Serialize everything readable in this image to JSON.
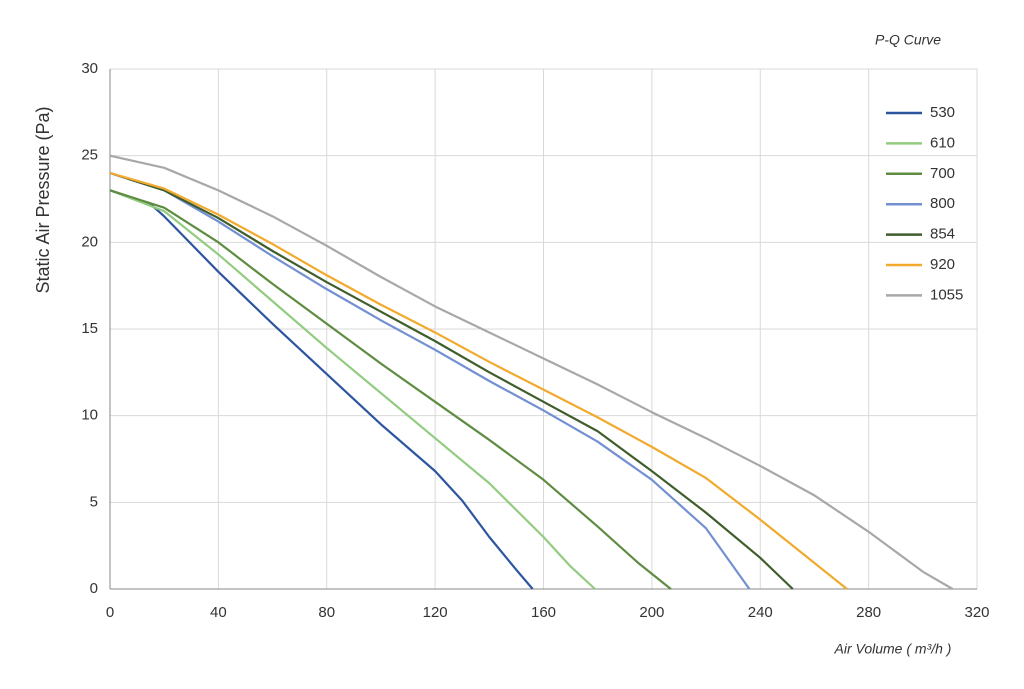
{
  "chart_data": {
    "type": "line",
    "title": "P-Q Curve",
    "x_label": "Air Volume ( m³/h )",
    "y_label": "Static Air Pressure  (Pa)",
    "xlim": [
      0,
      320
    ],
    "xticks": [
      0,
      40,
      80,
      120,
      160,
      200,
      240,
      280,
      320
    ],
    "ylim": [
      0,
      30
    ],
    "yticks": [
      0,
      5,
      10,
      15,
      20,
      25,
      30
    ],
    "grid": true,
    "legend": "upper right",
    "series": [
      {
        "name": "530",
        "color": "#2e55a0",
        "x": [
          0,
          15,
          20,
          40,
          60,
          80,
          100,
          120,
          130,
          140,
          150,
          156
        ],
        "values": [
          23,
          22.2,
          21.5,
          18.3,
          15.3,
          12.4,
          9.5,
          6.8,
          5.1,
          3,
          1.1,
          0
        ]
      },
      {
        "name": "610",
        "color": "#93cc80",
        "x": [
          0,
          20,
          40,
          60,
          80,
          100,
          120,
          140,
          160,
          170,
          179
        ],
        "values": [
          23,
          21.8,
          19.3,
          16.6,
          13.9,
          11.3,
          8.7,
          6.1,
          3,
          1.3,
          0
        ]
      },
      {
        "name": "700",
        "color": "#5e8c42",
        "x": [
          0,
          20,
          40,
          60,
          80,
          100,
          120,
          140,
          160,
          180,
          195,
          207
        ],
        "values": [
          23,
          22,
          20,
          17.6,
          15.3,
          13,
          10.8,
          8.6,
          6.3,
          3.6,
          1.5,
          0
        ]
      },
      {
        "name": "800",
        "color": "#7290d2",
        "x": [
          0,
          20,
          40,
          60,
          80,
          100,
          120,
          140,
          160,
          180,
          200,
          220,
          236
        ],
        "values": [
          24,
          23,
          21.2,
          19.2,
          17.3,
          15.5,
          13.8,
          12,
          10.3,
          8.5,
          6.3,
          3.5,
          0
        ]
      },
      {
        "name": "854",
        "color": "#3f5e2c",
        "x": [
          0,
          20,
          40,
          60,
          80,
          100,
          120,
          140,
          160,
          180,
          200,
          220,
          240,
          252
        ],
        "values": [
          24,
          23,
          21.4,
          19.5,
          17.7,
          16,
          14.3,
          12.5,
          10.8,
          9.1,
          6.8,
          4.4,
          1.8,
          0
        ]
      },
      {
        "name": "920",
        "color": "#f2aa2e",
        "x": [
          0,
          20,
          40,
          60,
          80,
          100,
          120,
          140,
          160,
          180,
          200,
          220,
          240,
          260,
          272
        ],
        "values": [
          24,
          23.1,
          21.6,
          19.9,
          18.1,
          16.4,
          14.8,
          13.1,
          11.5,
          9.9,
          8.2,
          6.4,
          4,
          1.5,
          0
        ]
      },
      {
        "name": "1055",
        "color": "#a8a8a8",
        "x": [
          0,
          20,
          40,
          60,
          80,
          100,
          120,
          140,
          160,
          180,
          200,
          220,
          240,
          260,
          280,
          300,
          311
        ],
        "values": [
          25,
          24.3,
          23,
          21.5,
          19.8,
          18,
          16.3,
          14.8,
          13.3,
          11.8,
          10.2,
          8.7,
          7.1,
          5.4,
          3.3,
          1,
          0
        ]
      }
    ]
  }
}
